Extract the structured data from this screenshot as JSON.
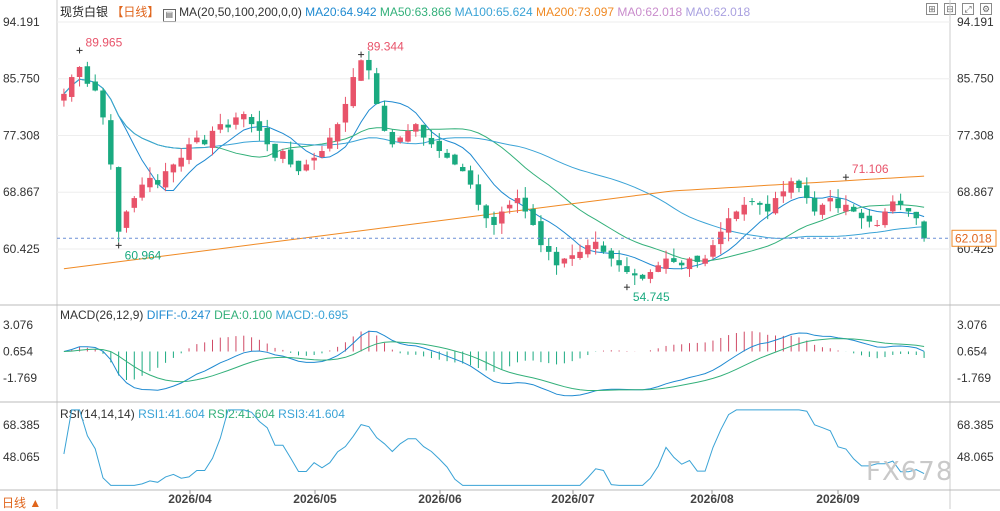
{
  "header": {
    "symbol": "现货白银",
    "period": "【日线】",
    "ma_label": "MA(20,50,100,200,0,0)",
    "ma_values": [
      {
        "text": "MA20:64.942",
        "color": "#1f8ad1"
      },
      {
        "text": "MA50:63.866",
        "color": "#33b07a"
      },
      {
        "text": "MA100:65.624",
        "color": "#3aa3d6"
      },
      {
        "text": "MA200:73.097",
        "color": "#f08a24"
      },
      {
        "text": "MA0:62.018",
        "color": "#c98ccc"
      },
      {
        "text": "MA0:62.018",
        "color": "#a9a0e0"
      }
    ]
  },
  "macd_header": {
    "label": "MACD(26,12,9)",
    "values": [
      {
        "text": "DIFF:-0.247",
        "color": "#1f8ad1"
      },
      {
        "text": "DEA:0.100",
        "color": "#33b07a"
      },
      {
        "text": "MACD:-0.695",
        "color": "#3aa3d6"
      }
    ]
  },
  "rsi_header": {
    "label": "RSI(14,14,14)",
    "values": [
      {
        "text": "RSI1:41.604",
        "color": "#3aa3d6"
      },
      {
        "text": "RSI2:41.604",
        "color": "#33b07a"
      },
      {
        "text": "RSI3:41.604",
        "color": "#3aa3d6"
      }
    ]
  },
  "chart_data": {
    "type": "candlestick",
    "price_axis": {
      "ticks": [
        "94.191",
        "85.750",
        "77.308",
        "68.867",
        "60.425"
      ],
      "ylim": [
        54.0,
        94.191
      ]
    },
    "macd_axis": {
      "ticks": [
        "3.076",
        "0.654",
        "-1.769"
      ]
    },
    "rsi_axis": {
      "ticks": [
        "68.385",
        "48.065"
      ]
    },
    "x_ticks": [
      "2026/04",
      "2026/05",
      "2026/06",
      "2026/07",
      "2026/08",
      "2026/09"
    ],
    "current_price": "62.018",
    "annotations": [
      {
        "label": "89.965"
      },
      {
        "label": "60.964"
      },
      {
        "label": "89.344"
      },
      {
        "label": "54.745"
      },
      {
        "label": "71.106"
      }
    ],
    "close_series": [
      83.5,
      86,
      87.5,
      85,
      84,
      80,
      73,
      63,
      66,
      68,
      70,
      71,
      70,
      72,
      73,
      74,
      76,
      77,
      76,
      78,
      79,
      78.5,
      80,
      80.5,
      79,
      78,
      76,
      74,
      75,
      73,
      72,
      73,
      74,
      75,
      77,
      79,
      82,
      86,
      88.5,
      87,
      82,
      78,
      76,
      77,
      78,
      79,
      77,
      76,
      75,
      74,
      73,
      72,
      70,
      67,
      65,
      64,
      66,
      67,
      68,
      66,
      64,
      61,
      60,
      58,
      59,
      59.5,
      60,
      61,
      61.5,
      60,
      59,
      58,
      57,
      56.5,
      56,
      57,
      58,
      59,
      58.5,
      58,
      59,
      58.5,
      59,
      61,
      63,
      65,
      66,
      67,
      67.5,
      67,
      66,
      68,
      69,
      70.5,
      69.5,
      68,
      66,
      67,
      68,
      66.5,
      67,
      66,
      65,
      64.5,
      64,
      66,
      67.5,
      67,
      66,
      65,
      62
    ]
  },
  "watermark": "FX678",
  "footer": {
    "status": "日线"
  }
}
